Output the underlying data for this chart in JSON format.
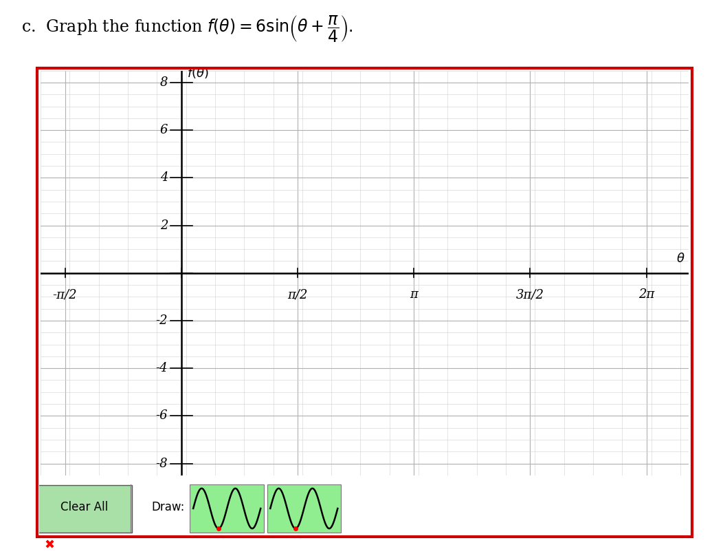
{
  "xlim": [
    -1.9,
    6.85
  ],
  "ylim": [
    -8.5,
    8.5
  ],
  "xticks_values": [
    -1.5707963267948966,
    0,
    1.5707963267948966,
    3.141592653589793,
    4.71238898038469,
    6.283185307179586
  ],
  "xticks_labels": [
    "-π/2",
    "",
    "π/2",
    "π",
    "3π/2",
    "2π"
  ],
  "yticks_values": [
    -8,
    -6,
    -4,
    -2,
    0,
    2,
    4,
    6,
    8
  ],
  "yticks_labels": [
    "-8",
    "-6",
    "-4",
    "-2",
    "",
    "2",
    "4",
    "6",
    "8"
  ],
  "grid_color": "#b0b0b0",
  "axes_color": "#000000",
  "border_color": "#cc0000",
  "background_color": "#ffffff",
  "plot_bg_color": "#ffffff",
  "clear_all_bg": "#90ee90",
  "draw_bg": "#90ee90"
}
